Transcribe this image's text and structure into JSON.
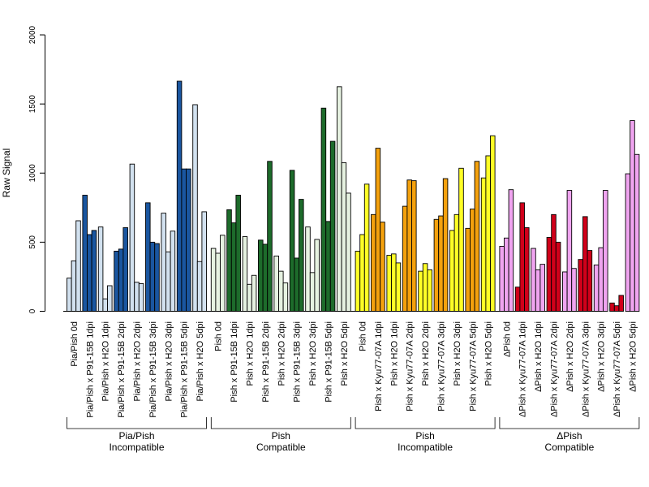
{
  "chart_data": {
    "type": "bar",
    "ylabel": "Raw Signal",
    "xlabel": "",
    "title": "",
    "ylim": [
      0,
      2000
    ],
    "yticks": [
      0,
      500,
      1000,
      1500,
      2000
    ],
    "grid": false,
    "bars_per_category": 3,
    "colors": {
      "Pia/Pish Incompatible": {
        "dark": "#1a56a0",
        "light": "#d2e1ef"
      },
      "Pish Compatible": {
        "dark": "#1d6b2b",
        "light": "#e6f2e1"
      },
      "Pish Incompatible": {
        "dark": "#f4a10d",
        "light": "#ffff26"
      },
      "ΔPish Compatible": {
        "dark": "#d0001a",
        "light": "#f0a4f0"
      }
    },
    "groups": [
      {
        "name_line1": "Pia/Pish",
        "name_line2": "Incompatible",
        "palette": "Pia/Pish Incompatible",
        "categories": [
          {
            "label": "Pia/Pish 0d",
            "shade": "light",
            "values": [
              240,
              365,
              655
            ]
          },
          {
            "label": "Pia/Pish x P91-15B 1dpi",
            "shade": "dark",
            "values": [
              840,
              555,
              585
            ]
          },
          {
            "label": "Pia/Pish x H2O 1dpi",
            "shade": "light",
            "values": [
              610,
              90,
              185
            ]
          },
          {
            "label": "Pia/Pish x P91-15B 2dpi",
            "shade": "dark",
            "values": [
              435,
              450,
              605
            ]
          },
          {
            "label": "Pia/Pish x H2O 2dpi",
            "shade": "light",
            "values": [
              1065,
              210,
              200
            ]
          },
          {
            "label": "Pia/Pish x P91-15B 3dpi",
            "shade": "dark",
            "values": [
              785,
              500,
              490
            ]
          },
          {
            "label": "Pia/Pish x H2O 3dpi",
            "shade": "light",
            "values": [
              710,
              430,
              580
            ]
          },
          {
            "label": "Pia/Pish x P91-15B 5dpi",
            "shade": "dark",
            "values": [
              1665,
              1030,
              1030
            ]
          },
          {
            "label": "Pia/Pish x H2O 5dpi",
            "shade": "light",
            "values": [
              1495,
              360,
              720
            ]
          }
        ]
      },
      {
        "name_line1": "Pish",
        "name_line2": "Compatible",
        "palette": "Pish Compatible",
        "categories": [
          {
            "label": "Pish 0d",
            "shade": "light",
            "values": [
              455,
              420,
              550
            ]
          },
          {
            "label": "Pish x P91-15B 1dpi",
            "shade": "dark",
            "values": [
              735,
              640,
              840
            ]
          },
          {
            "label": "Pish x H2O 1dpi",
            "shade": "light",
            "values": [
              540,
              195,
              260
            ]
          },
          {
            "label": "Pish x P91-15B 2dpi",
            "shade": "dark",
            "values": [
              515,
              485,
              1085
            ]
          },
          {
            "label": "Pish x H2O 2dpi",
            "shade": "light",
            "values": [
              400,
              290,
              205
            ]
          },
          {
            "label": "Pish x P91-15B 3dpi",
            "shade": "dark",
            "values": [
              1020,
              385,
              810
            ]
          },
          {
            "label": "Pish x H2O 3dpi",
            "shade": "light",
            "values": [
              610,
              280,
              520
            ]
          },
          {
            "label": "Pish x P91-15B 5dpi",
            "shade": "dark",
            "values": [
              1470,
              650,
              1230
            ]
          },
          {
            "label": "Pish x H2O 5dpi",
            "shade": "light",
            "values": [
              1625,
              1075,
              855
            ]
          }
        ]
      },
      {
        "name_line1": "Pish",
        "name_line2": "Incompatible",
        "palette": "Pish Incompatible",
        "categories": [
          {
            "label": "Pish 0d",
            "shade": "light",
            "values": [
              435,
              555,
              920
            ]
          },
          {
            "label": "Pish x Kyu77-07A 1dpi",
            "shade": "dark",
            "values": [
              700,
              1180,
              645
            ]
          },
          {
            "label": "Pish x H2O 1dpi",
            "shade": "light",
            "values": [
              405,
              415,
              350
            ]
          },
          {
            "label": "Pish x Kyu77-07A 2dpi",
            "shade": "dark",
            "values": [
              760,
              950,
              945
            ]
          },
          {
            "label": "Pish x H2O 2dpi",
            "shade": "light",
            "values": [
              290,
              345,
              300
            ]
          },
          {
            "label": "Pish x Kyu77-07A 3dpi",
            "shade": "dark",
            "values": [
              665,
              690,
              960
            ]
          },
          {
            "label": "Pish x H2O 3dpi",
            "shade": "light",
            "values": [
              585,
              700,
              1035
            ]
          },
          {
            "label": "Pish x Kyu77-07A 5dpi",
            "shade": "dark",
            "values": [
              600,
              740,
              1085
            ]
          },
          {
            "label": "Pish x H2O 5dpi",
            "shade": "light",
            "values": [
              965,
              1125,
              1270
            ]
          }
        ]
      },
      {
        "name_line1": "ΔPish",
        "name_line2": "Compatible",
        "palette": "ΔPish Compatible",
        "categories": [
          {
            "label": "ΔPish 0d",
            "shade": "light",
            "values": [
              470,
              530,
              880
            ]
          },
          {
            "label": "ΔPish x Kyu77-07A 1dpi",
            "shade": "dark",
            "values": [
              175,
              785,
              605
            ]
          },
          {
            "label": "ΔPish x H2O 1dpi",
            "shade": "light",
            "values": [
              455,
              300,
              340
            ]
          },
          {
            "label": "ΔPish x Kyu77-07A 2dpi",
            "shade": "dark",
            "values": [
              535,
              700,
              500
            ]
          },
          {
            "label": "ΔPish x H2O 2dpi",
            "shade": "light",
            "values": [
              285,
              875,
              310
            ]
          },
          {
            "label": "ΔPish x Kyu77-07A 3dpi",
            "shade": "dark",
            "values": [
              375,
              685,
              440
            ]
          },
          {
            "label": "ΔPish x H2O 3dpi",
            "shade": "light",
            "values": [
              335,
              460,
              875
            ]
          },
          {
            "label": "ΔPish x Kyu77-07A 5dpi",
            "shade": "dark",
            "values": [
              60,
              40,
              115
            ]
          },
          {
            "label": "ΔPish x H2O 5dpi",
            "shade": "light",
            "values": [
              995,
              1380,
              1135
            ]
          }
        ]
      }
    ]
  }
}
